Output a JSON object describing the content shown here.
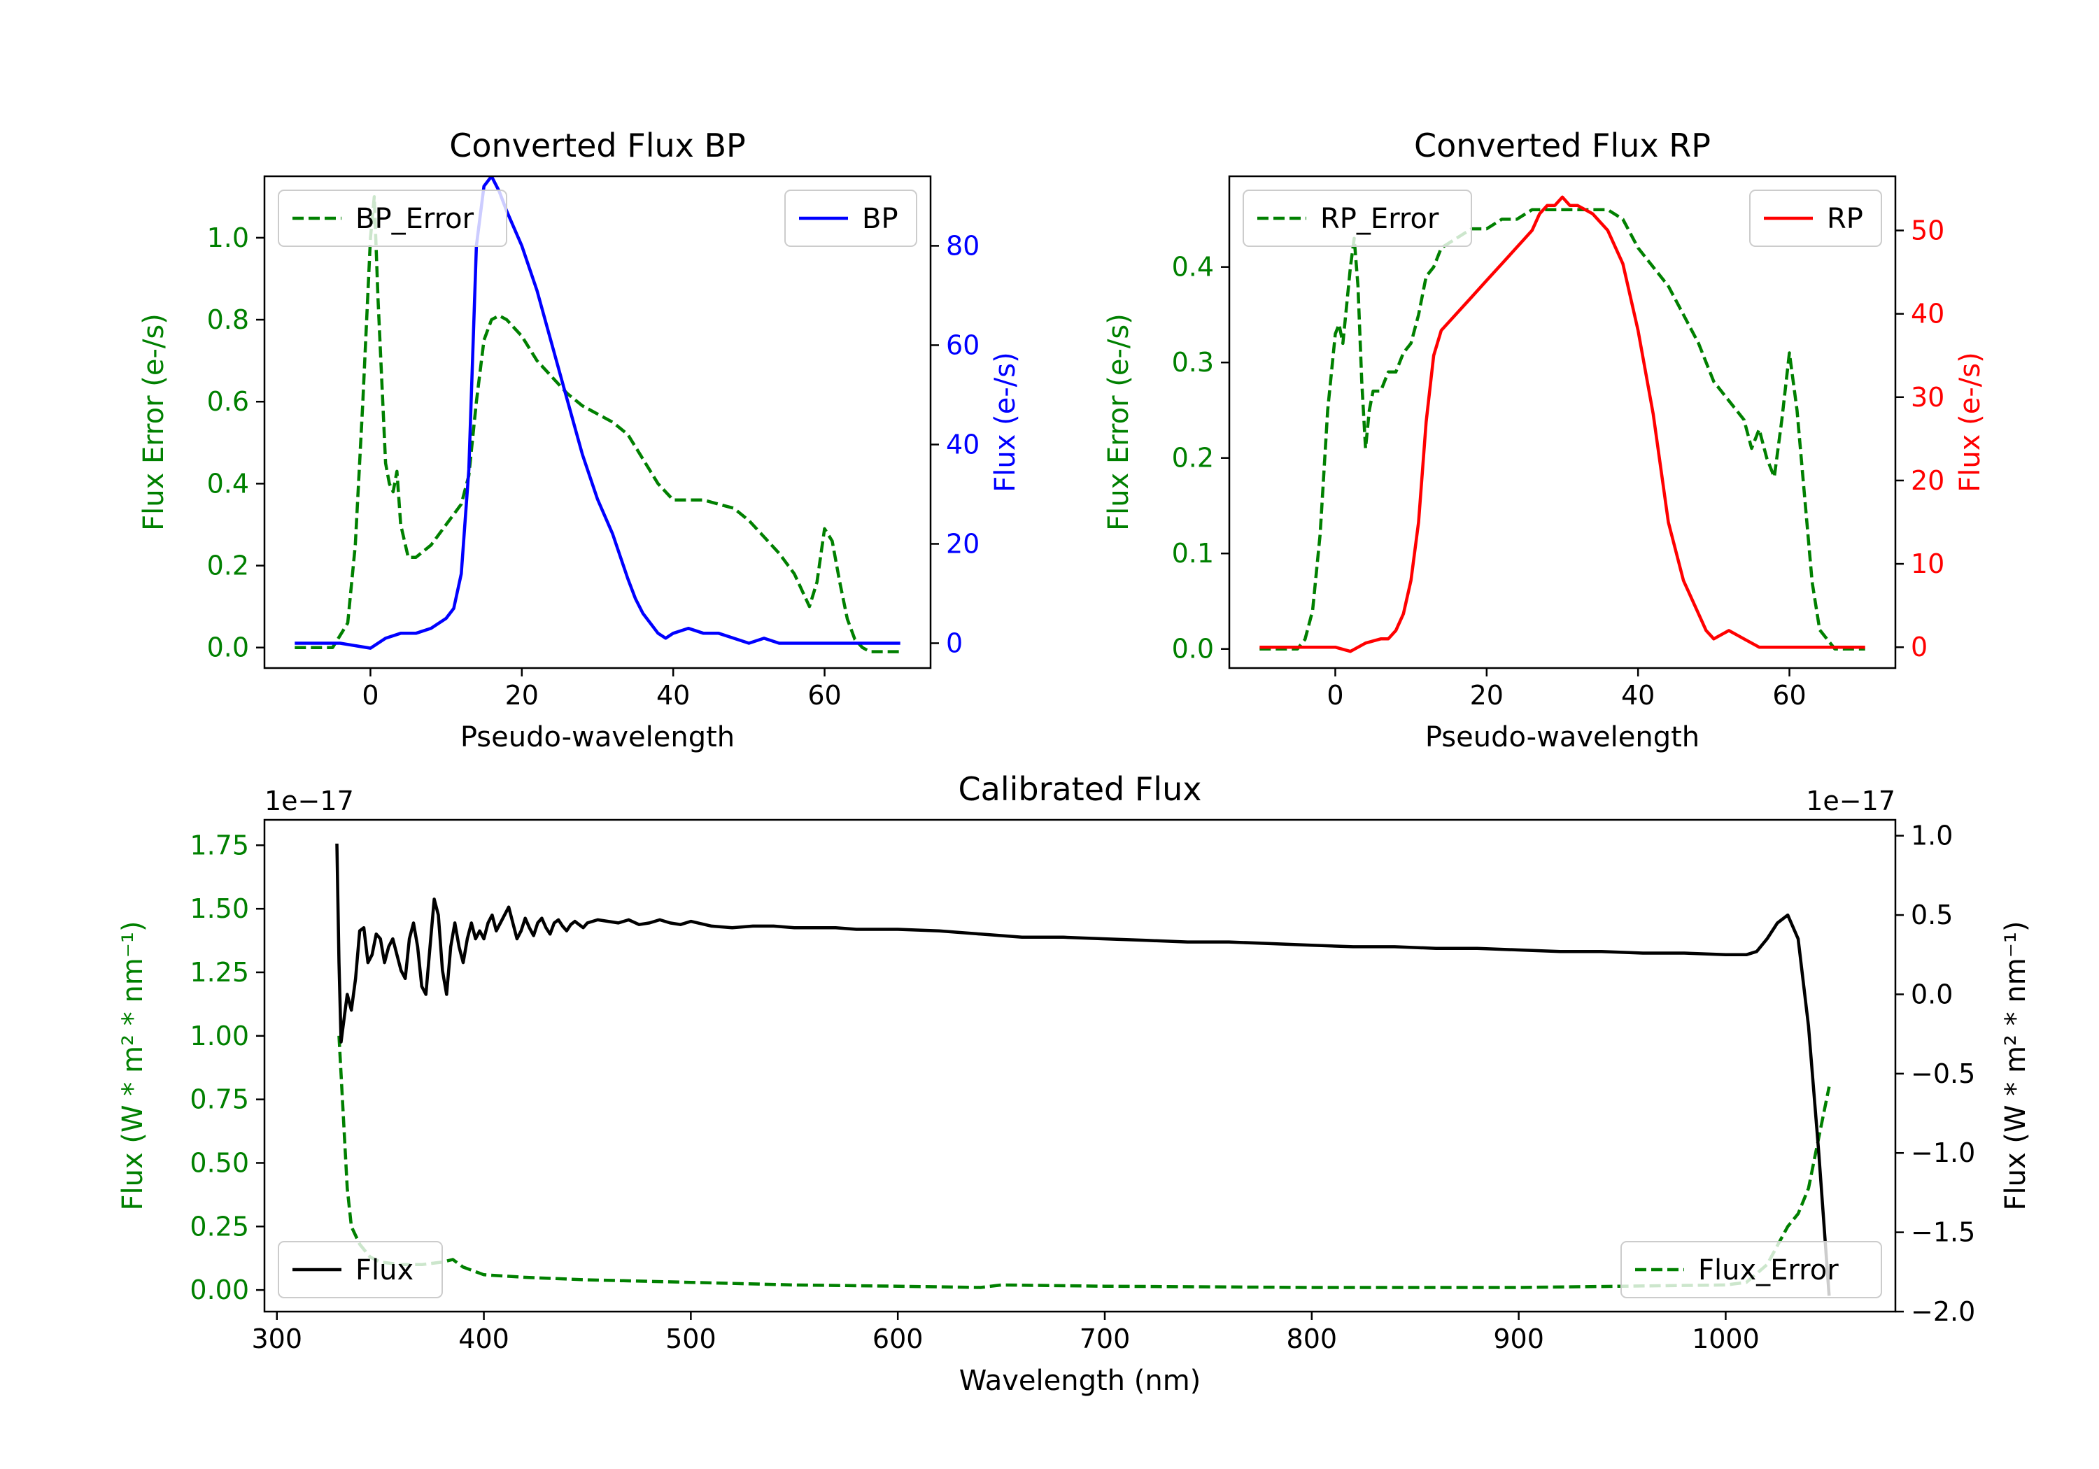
{
  "colors": {
    "bp": "#0000ff",
    "rp": "#ff0000",
    "error": "#008000",
    "flux": "#000000"
  },
  "chart_data": [
    {
      "id": "bp",
      "type": "line",
      "title": "Converted Flux BP",
      "xlabel": "Pseudo-wavelength",
      "ylabel_left": "Flux Error (e-/s)",
      "ylabel_right": "Flux (e-/s)",
      "xlim": [
        -14,
        74
      ],
      "ylim_left": [
        -0.05,
        1.15
      ],
      "ylim_right": [
        -5,
        94
      ],
      "xticks": [
        0,
        20,
        40,
        60
      ],
      "xtick_labels": [
        "0",
        "20",
        "40",
        "60"
      ],
      "yticks_left": [
        0.0,
        0.2,
        0.4,
        0.6,
        0.8,
        1.0
      ],
      "ytick_labels_left": [
        "0.0",
        "0.2",
        "0.4",
        "0.6",
        "0.8",
        "1.0"
      ],
      "yticks_right": [
        0,
        20,
        40,
        60,
        80
      ],
      "ytick_labels_right": [
        "0",
        "20",
        "40",
        "60",
        "80"
      ],
      "legend_left": "BP_Error",
      "legend_right": "BP",
      "series": [
        {
          "name": "BP_Error",
          "axis": "left",
          "style": "dashed",
          "color": "#008000",
          "x": [
            -10,
            -5,
            -3,
            -2,
            -1,
            0,
            0.5,
            1,
            2,
            2.5,
            3,
            3.5,
            4,
            5,
            6,
            8,
            10,
            12,
            13,
            14,
            15,
            16,
            17,
            18,
            19,
            20,
            22,
            24,
            26,
            28,
            30,
            32,
            34,
            36,
            38,
            40,
            42,
            44,
            46,
            48,
            50,
            52,
            54,
            56,
            57,
            58,
            59,
            60,
            61,
            62,
            63,
            64,
            65,
            66,
            68,
            70
          ],
          "y": [
            0.0,
            0.0,
            0.06,
            0.25,
            0.6,
            1.0,
            1.1,
            0.85,
            0.45,
            0.4,
            0.38,
            0.43,
            0.3,
            0.22,
            0.22,
            0.25,
            0.3,
            0.35,
            0.42,
            0.6,
            0.75,
            0.8,
            0.81,
            0.8,
            0.78,
            0.76,
            0.7,
            0.66,
            0.62,
            0.59,
            0.57,
            0.55,
            0.52,
            0.46,
            0.4,
            0.36,
            0.36,
            0.36,
            0.35,
            0.34,
            0.31,
            0.27,
            0.23,
            0.18,
            0.14,
            0.1,
            0.16,
            0.29,
            0.26,
            0.16,
            0.07,
            0.02,
            0.0,
            -0.01,
            -0.01,
            -0.01
          ]
        },
        {
          "name": "BP",
          "axis": "right",
          "style": "solid",
          "color": "#0000ff",
          "x": [
            -10,
            -4,
            0,
            2,
            4,
            6,
            8,
            10,
            11,
            12,
            13,
            14,
            15,
            16,
            17,
            18,
            20,
            22,
            24,
            26,
            28,
            30,
            32,
            34,
            35,
            36,
            38,
            39,
            40,
            42,
            44,
            46,
            48,
            50,
            52,
            54,
            56,
            60,
            64,
            70
          ],
          "y": [
            0,
            0,
            -1,
            1,
            2,
            2,
            3,
            5,
            7,
            14,
            35,
            80,
            92,
            94,
            91,
            87,
            80,
            71,
            60,
            49,
            38,
            29,
            22,
            13,
            9,
            6,
            2,
            1,
            2,
            3,
            2,
            2,
            1,
            0,
            1,
            0,
            0,
            0,
            0,
            0
          ]
        }
      ]
    },
    {
      "id": "rp",
      "type": "line",
      "title": "Converted Flux RP",
      "xlabel": "Pseudo-wavelength",
      "ylabel_left": "Flux Error (e-/s)",
      "ylabel_right": "Flux (e-/s)",
      "xlim": [
        -14,
        74
      ],
      "ylim_left": [
        -0.02,
        0.495
      ],
      "ylim_right": [
        -2.5,
        56.5
      ],
      "xticks": [
        0,
        20,
        40,
        60
      ],
      "xtick_labels": [
        "0",
        "20",
        "40",
        "60"
      ],
      "yticks_left": [
        0.0,
        0.1,
        0.2,
        0.3,
        0.4
      ],
      "ytick_labels_left": [
        "0.0",
        "0.1",
        "0.2",
        "0.3",
        "0.4"
      ],
      "yticks_right": [
        0,
        10,
        20,
        30,
        40,
        50
      ],
      "ytick_labels_right": [
        "0",
        "10",
        "20",
        "30",
        "40",
        "50"
      ],
      "legend_left": "RP_Error",
      "legend_right": "RP",
      "series": [
        {
          "name": "RP_Error",
          "axis": "left",
          "style": "dashed",
          "color": "#008000",
          "x": [
            -10,
            -5,
            -4,
            -3,
            -2,
            -1,
            0,
            0.5,
            1,
            1.5,
            2,
            2.5,
            3,
            3.5,
            4,
            4.5,
            5,
            6,
            7,
            8,
            9,
            10,
            11,
            12,
            13,
            14,
            16,
            18,
            20,
            22,
            24,
            26,
            28,
            30,
            32,
            34,
            36,
            38,
            40,
            42,
            44,
            46,
            48,
            50,
            52,
            53,
            54,
            55,
            56,
            57,
            58,
            59,
            60,
            61,
            62,
            63,
            64,
            66,
            70
          ],
          "y": [
            0.0,
            0.0,
            0.01,
            0.04,
            0.12,
            0.25,
            0.33,
            0.34,
            0.32,
            0.36,
            0.4,
            0.43,
            0.38,
            0.28,
            0.21,
            0.25,
            0.27,
            0.27,
            0.29,
            0.29,
            0.31,
            0.32,
            0.35,
            0.39,
            0.4,
            0.42,
            0.43,
            0.44,
            0.44,
            0.45,
            0.45,
            0.46,
            0.46,
            0.46,
            0.46,
            0.46,
            0.46,
            0.45,
            0.42,
            0.4,
            0.38,
            0.35,
            0.32,
            0.28,
            0.26,
            0.25,
            0.24,
            0.21,
            0.23,
            0.2,
            0.18,
            0.24,
            0.31,
            0.25,
            0.16,
            0.07,
            0.02,
            0.0,
            0.0
          ]
        },
        {
          "name": "RP",
          "axis": "right",
          "style": "solid",
          "color": "#ff0000",
          "x": [
            -10,
            -4,
            0,
            2,
            4,
            6,
            7,
            8,
            9,
            10,
            11,
            12,
            13,
            14,
            16,
            18,
            20,
            22,
            24,
            25,
            26,
            27,
            28,
            29,
            30,
            31,
            32,
            34,
            36,
            38,
            40,
            42,
            44,
            46,
            48,
            49,
            50,
            51,
            52,
            53,
            54,
            56,
            60,
            64,
            70
          ],
          "y": [
            0,
            0,
            0,
            -0.5,
            0.5,
            1,
            1,
            2,
            4,
            8,
            15,
            27,
            35,
            38,
            40,
            42,
            44,
            46,
            48,
            49,
            50,
            52,
            53,
            53,
            54,
            53,
            53,
            52,
            50,
            46,
            38,
            28,
            15,
            8,
            4,
            2,
            1,
            1.5,
            2,
            1.5,
            1,
            0,
            0,
            0,
            0
          ]
        }
      ]
    },
    {
      "id": "calibrated",
      "type": "line",
      "title": "Calibrated Flux",
      "xlabel": "Wavelength (nm)",
      "ylabel_left": "Flux (W * m² * nm⁻¹)",
      "ylabel_right": "Flux (W * m² * nm⁻¹)",
      "offset_left": "1e−17",
      "offset_right": "1e−17",
      "xlim": [
        294,
        1082
      ],
      "ylim_left": [
        -0.085,
        1.85
      ],
      "ylim_right": [
        -2.0,
        1.1
      ],
      "xticks": [
        300,
        400,
        500,
        600,
        700,
        800,
        900,
        1000
      ],
      "xtick_labels": [
        "300",
        "400",
        "500",
        "600",
        "700",
        "800",
        "900",
        "1000"
      ],
      "yticks_left": [
        0.0,
        0.25,
        0.5,
        0.75,
        1.0,
        1.25,
        1.5,
        1.75
      ],
      "ytick_labels_left": [
        "0.00",
        "0.25",
        "0.50",
        "0.75",
        "1.00",
        "1.25",
        "1.50",
        "1.75"
      ],
      "yticks_right": [
        -2.0,
        -1.5,
        -1.0,
        -0.5,
        0.0,
        0.5,
        1.0
      ],
      "ytick_labels_right": [
        "−2.0",
        "−1.5",
        "−1.0",
        "−0.5",
        "0.0",
        "0.5",
        "1.0"
      ],
      "legend_left": "Flux",
      "legend_right": "Flux_Error",
      "series": [
        {
          "name": "Flux_Error",
          "axis": "left",
          "style": "dashed",
          "color": "#008000",
          "x": [
            330,
            332,
            334,
            336,
            340,
            345,
            350,
            360,
            370,
            380,
            385,
            390,
            400,
            420,
            450,
            500,
            550,
            600,
            640,
            650,
            700,
            800,
            900,
            950,
            1000,
            1010,
            1020,
            1030,
            1035,
            1040,
            1045,
            1050
          ],
          "y": [
            1.0,
            0.7,
            0.4,
            0.25,
            0.18,
            0.13,
            0.11,
            0.1,
            0.1,
            0.11,
            0.12,
            0.09,
            0.06,
            0.05,
            0.04,
            0.03,
            0.02,
            0.015,
            0.01,
            0.02,
            0.015,
            0.01,
            0.01,
            0.015,
            0.02,
            0.03,
            0.1,
            0.25,
            0.3,
            0.4,
            0.6,
            0.8
          ]
        },
        {
          "name": "Flux",
          "axis": "right",
          "style": "solid",
          "color": "#000000",
          "x": [
            329,
            330,
            331,
            332,
            334,
            336,
            338,
            340,
            342,
            344,
            346,
            348,
            350,
            352,
            354,
            356,
            358,
            360,
            362,
            364,
            366,
            368,
            370,
            372,
            374,
            376,
            378,
            380,
            382,
            384,
            386,
            388,
            390,
            392,
            394,
            396,
            398,
            400,
            402,
            404,
            406,
            408,
            410,
            412,
            414,
            416,
            418,
            420,
            422,
            424,
            426,
            428,
            430,
            432,
            434,
            436,
            438,
            440,
            442,
            444,
            446,
            448,
            450,
            455,
            460,
            465,
            470,
            475,
            480,
            485,
            490,
            495,
            500,
            510,
            520,
            530,
            540,
            550,
            560,
            570,
            580,
            590,
            600,
            620,
            640,
            650,
            660,
            680,
            700,
            720,
            740,
            760,
            780,
            800,
            820,
            840,
            860,
            880,
            900,
            920,
            940,
            960,
            980,
            1000,
            1010,
            1015,
            1020,
            1025,
            1030,
            1035,
            1040,
            1045,
            1050
          ],
          "y": [
            0.95,
            0.2,
            -0.3,
            -0.2,
            0.0,
            -0.1,
            0.1,
            0.4,
            0.42,
            0.2,
            0.25,
            0.38,
            0.35,
            0.2,
            0.3,
            0.35,
            0.25,
            0.15,
            0.1,
            0.35,
            0.45,
            0.3,
            0.05,
            0.0,
            0.3,
            0.6,
            0.5,
            0.15,
            0.0,
            0.3,
            0.45,
            0.3,
            0.2,
            0.35,
            0.45,
            0.35,
            0.4,
            0.35,
            0.45,
            0.5,
            0.4,
            0.45,
            0.5,
            0.55,
            0.45,
            0.35,
            0.4,
            0.48,
            0.42,
            0.37,
            0.45,
            0.48,
            0.42,
            0.38,
            0.45,
            0.47,
            0.43,
            0.4,
            0.44,
            0.46,
            0.44,
            0.42,
            0.45,
            0.47,
            0.46,
            0.45,
            0.47,
            0.44,
            0.45,
            0.47,
            0.45,
            0.44,
            0.46,
            0.43,
            0.42,
            0.43,
            0.43,
            0.42,
            0.42,
            0.42,
            0.41,
            0.41,
            0.41,
            0.4,
            0.38,
            0.37,
            0.36,
            0.36,
            0.35,
            0.34,
            0.33,
            0.33,
            0.32,
            0.31,
            0.3,
            0.3,
            0.29,
            0.29,
            0.28,
            0.27,
            0.27,
            0.26,
            0.26,
            0.25,
            0.25,
            0.27,
            0.35,
            0.45,
            0.5,
            0.35,
            -0.2,
            -1.0,
            -1.9
          ]
        }
      ]
    }
  ]
}
